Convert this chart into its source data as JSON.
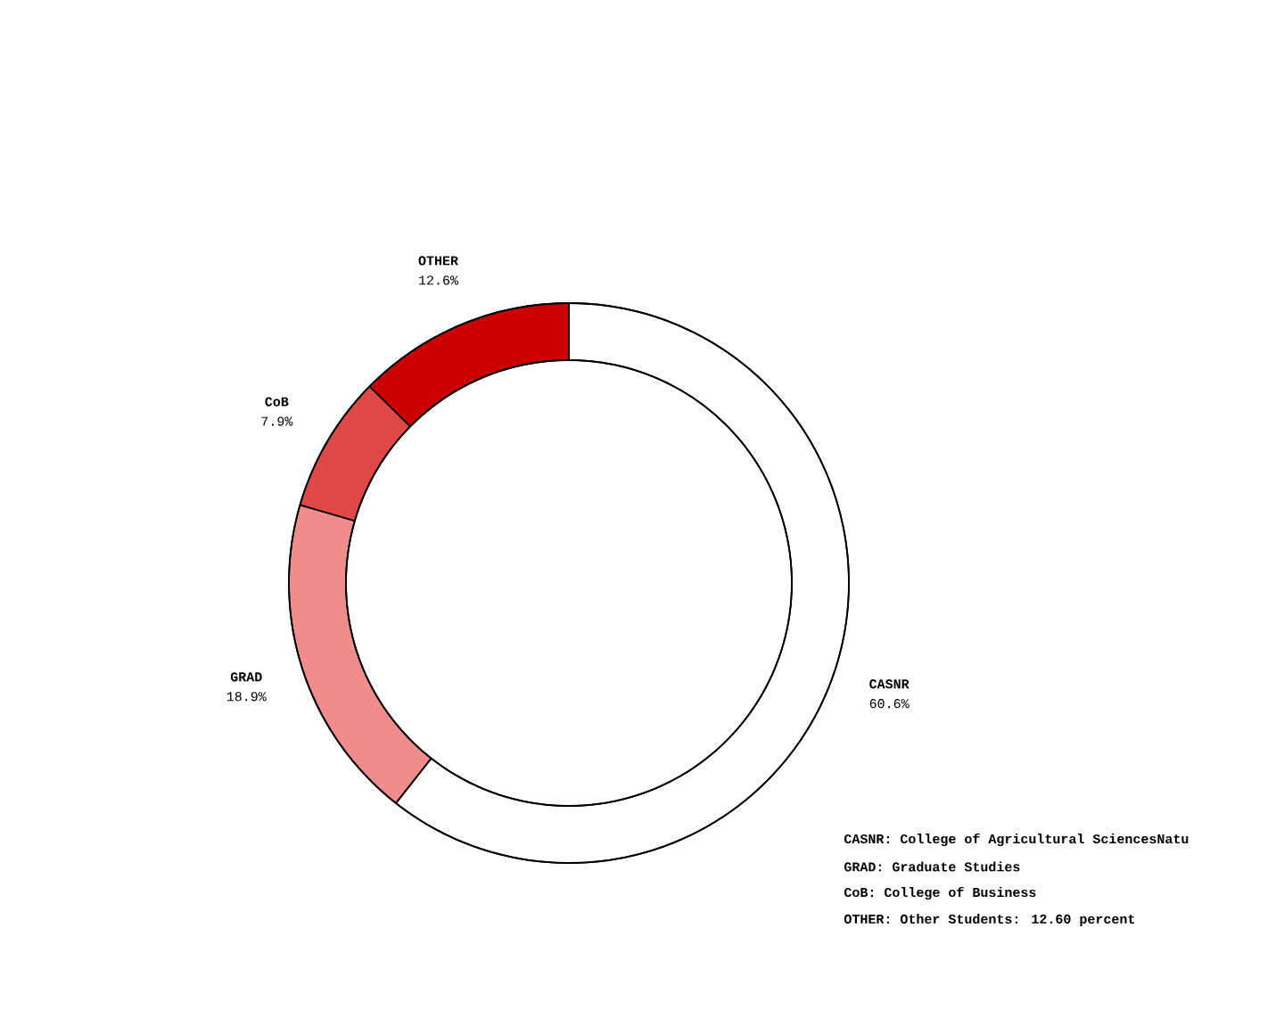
{
  "chart_data": {
    "type": "donut",
    "categories": [
      "CASNR",
      "GRAD",
      "CoB",
      "OTHER"
    ],
    "values": [
      60.6,
      18.9,
      7.9,
      12.6
    ],
    "colors": [
      "#ffffff",
      "#f08c8c",
      "#e04848",
      "#cc0000"
    ],
    "value_labels": [
      "60.6%",
      "18.9%",
      "7.9%",
      "12.6%"
    ],
    "annotations": [
      "CASNR: College of Agricultural SciencesNatu",
      "GRAD: Graduate Studies",
      "CoB: College of Business",
      "OTHER: Other Students: 12.60 percent"
    ]
  }
}
